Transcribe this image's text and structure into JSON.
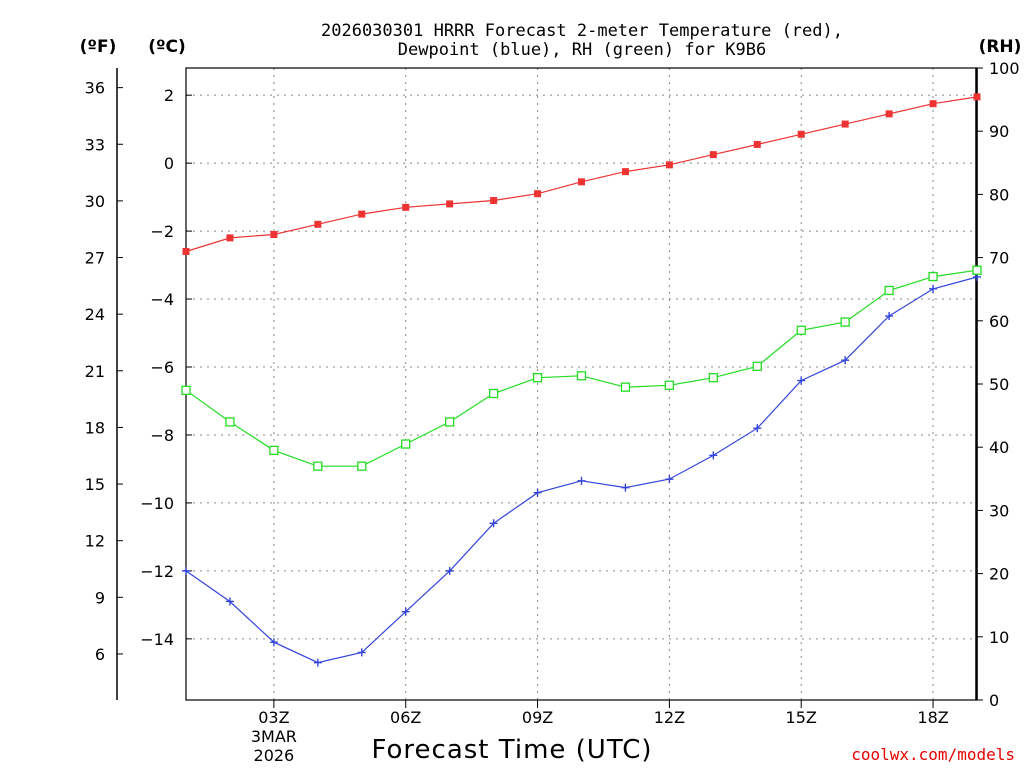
{
  "chart_data": {
    "type": "line",
    "title_line1": "2026030301 HRRR Forecast 2-meter Temperature (red),",
    "title_line2": "Dewpoint (blue), RH (green) for K9B6",
    "xlabel": "Forecast Time (UTC)",
    "credit": "coolwx.com/models",
    "units": {
      "f": "(ºF)",
      "c": "(ºC)",
      "rh": "(RH)"
    },
    "x_hours": [
      1,
      2,
      3,
      4,
      5,
      6,
      7,
      8,
      9,
      10,
      11,
      12,
      13,
      14,
      15,
      16,
      17,
      18,
      19
    ],
    "x_ticks": [
      {
        "hour": 3,
        "label": "03Z",
        "sub1": "3MAR",
        "sub2": "2026"
      },
      {
        "hour": 6,
        "label": "06Z",
        "sub1": "",
        "sub2": ""
      },
      {
        "hour": 9,
        "label": "09Z",
        "sub1": "",
        "sub2": ""
      },
      {
        "hour": 12,
        "label": "12Z",
        "sub1": "",
        "sub2": ""
      },
      {
        "hour": 15,
        "label": "15Z",
        "sub1": "",
        "sub2": ""
      },
      {
        "hour": 18,
        "label": "18Z",
        "sub1": "",
        "sub2": ""
      }
    ],
    "c_range": [
      -15.8,
      2.8
    ],
    "c_ticks": [
      "2",
      "0",
      "−2",
      "−4",
      "−6",
      "−8",
      "−10",
      "−12",
      "−14"
    ],
    "c_tick_values": [
      2,
      0,
      -2,
      -4,
      -6,
      -8,
      -10,
      -12,
      -14
    ],
    "f_ticks": [
      "36",
      "33",
      "30",
      "27",
      "24",
      "21",
      "18",
      "15",
      "12",
      "9",
      "6"
    ],
    "f_tick_values": [
      36,
      33,
      30,
      27,
      24,
      21,
      18,
      15,
      12,
      9,
      6
    ],
    "rh_range": [
      0,
      100
    ],
    "rh_ticks": [
      "100",
      "90",
      "80",
      "70",
      "60",
      "50",
      "40",
      "30",
      "20",
      "10",
      "0"
    ],
    "rh_tick_values": [
      100,
      90,
      80,
      70,
      60,
      50,
      40,
      30,
      20,
      10,
      0
    ],
    "series": [
      {
        "name": "Temperature",
        "units": "C",
        "color": "#ee3333",
        "marker": "filled-square",
        "values": [
          -2.6,
          -2.2,
          -2.1,
          -1.8,
          -1.5,
          -1.3,
          -1.2,
          -1.1,
          -0.9,
          -0.55,
          -0.25,
          -0.05,
          0.25,
          0.55,
          0.85,
          1.15,
          1.45,
          1.75,
          1.95
        ]
      },
      {
        "name": "Dewpoint",
        "units": "C",
        "color": "#3344dd",
        "marker": "plus",
        "values": [
          -12.0,
          -12.9,
          -14.1,
          -14.7,
          -14.4,
          -13.2,
          -12.0,
          -10.6,
          -9.7,
          -9.35,
          -9.55,
          -9.3,
          -8.6,
          -7.8,
          -6.4,
          -5.8,
          -4.5,
          -3.7,
          -3.35
        ]
      },
      {
        "name": "RH",
        "units": "%",
        "color": "#22dd22",
        "marker": "open-square",
        "values": [
          49,
          44,
          39.5,
          37,
          37,
          40.5,
          44,
          48.5,
          51,
          51.3,
          49.5,
          49.8,
          51,
          52.8,
          58.5,
          59.8,
          64.8,
          67,
          68
        ]
      }
    ]
  }
}
